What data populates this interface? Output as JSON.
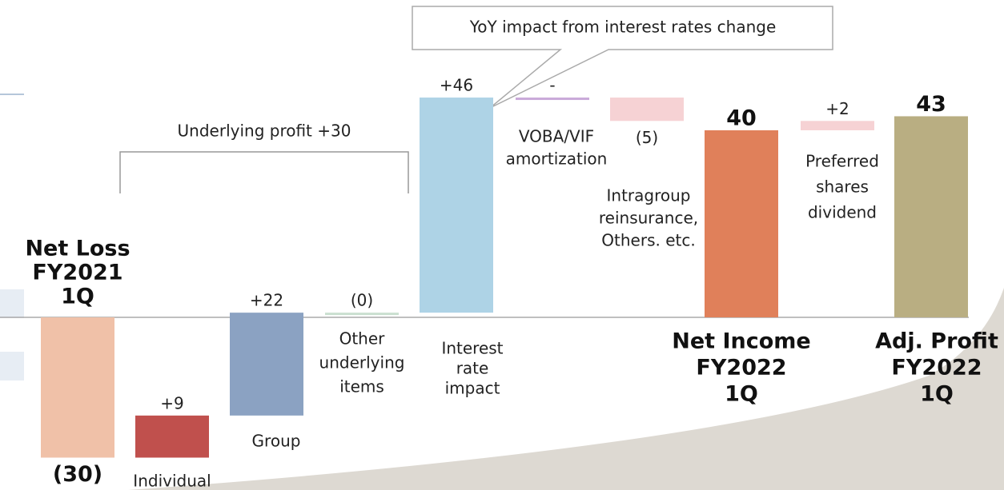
{
  "chart_data": {
    "type": "waterfall",
    "annotations": [
      "Underlying profit +30",
      "YoY impact from interest rates change"
    ],
    "categories": [
      [
        "Net Loss",
        "FY2021",
        "1Q"
      ],
      [
        "Individual"
      ],
      [
        "Group"
      ],
      [
        "Other",
        "underlying",
        "items"
      ],
      [
        "Interest",
        "rate",
        "impact"
      ],
      [
        "VOBA/VIF",
        "amortization"
      ],
      [
        "Intragroup",
        "reinsurance,",
        "Others. etc."
      ],
      [
        "Net Income",
        "FY2022",
        "1Q"
      ],
      [
        "Preferred",
        "shares",
        "dividend"
      ],
      [
        "Adj. Profit",
        "FY2022",
        "1Q"
      ]
    ],
    "measure": [
      "total",
      "relative",
      "relative",
      "relative",
      "relative",
      "relative",
      "relative",
      "total",
      "relative",
      "total"
    ],
    "values": [
      -30,
      9,
      22,
      0,
      46,
      0,
      -5,
      40,
      2,
      43
    ],
    "value_labels": [
      "(30)",
      "+9",
      "+22",
      "(0)",
      "+46",
      "-",
      "(5)",
      "40",
      "+2",
      "43"
    ],
    "colors": [
      "#f0c1a8",
      "#c0504d",
      "#8ba2c2",
      "#c9dfcf",
      "#aed3e6",
      "#c9a9d9",
      "#f6d2d4",
      "#e0805a",
      "#f6d2d4",
      "#b9ae82"
    ]
  }
}
